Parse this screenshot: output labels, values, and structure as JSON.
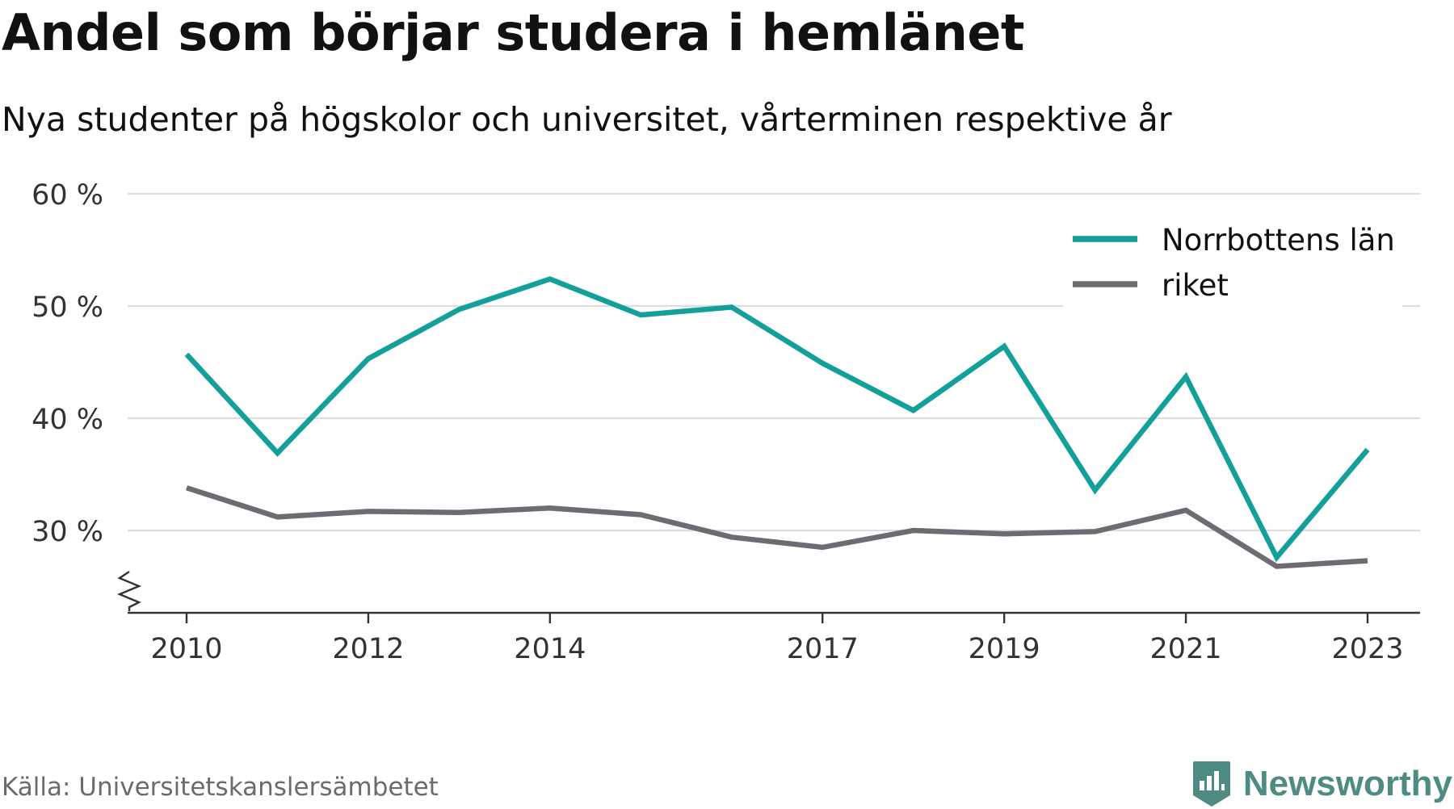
{
  "header": {
    "title": "Andel som börjar studera i hemlänet",
    "subtitle": "Nya studenter på högskolor och universitet, vårterminen respektive år"
  },
  "footer": {
    "source": "Källa: Universitetskanslersämbetet",
    "brand": "Newsworthy",
    "brand_icon": "newsworthy-logo-icon"
  },
  "colors": {
    "norrbotten": "#13a09a",
    "riket": "#6e6c72",
    "grid": "#dddddd",
    "axis": "#333333",
    "text": "#111111",
    "muted": "#6b6b6b",
    "brand": "#4e8c83"
  },
  "chart_data": {
    "type": "line",
    "title": "Andel som börjar studera i hemlänet",
    "subtitle": "Nya studenter på högskolor och universitet, vårterminen respektive år",
    "x": [
      2010,
      2011,
      2012,
      2013,
      2014,
      2015,
      2016,
      2017,
      2018,
      2019,
      2020,
      2021,
      2022,
      2023
    ],
    "x_tick_labels": [
      "2010",
      "2012",
      "2014",
      "2017",
      "2019",
      "2021",
      "2023"
    ],
    "y_ticks": [
      30,
      40,
      50,
      60
    ],
    "y_tick_labels": [
      "30 %",
      "40 %",
      "50 %",
      "60 %"
    ],
    "ylim": [
      22.5,
      60
    ],
    "y_axis_broken": true,
    "grid": true,
    "legend_position": "top-right",
    "series": [
      {
        "name": "Norrbottens län",
        "color": "#13a09a",
        "values": [
          45.7,
          36.9,
          45.3,
          49.7,
          52.4,
          49.2,
          49.9,
          44.9,
          40.7,
          46.4,
          33.6,
          43.7,
          27.6,
          37.2
        ]
      },
      {
        "name": "riket",
        "color": "#6e6c72",
        "values": [
          33.8,
          31.2,
          31.7,
          31.6,
          32.0,
          31.4,
          29.4,
          28.5,
          30.0,
          29.7,
          29.9,
          31.8,
          26.8,
          27.3
        ]
      }
    ]
  }
}
